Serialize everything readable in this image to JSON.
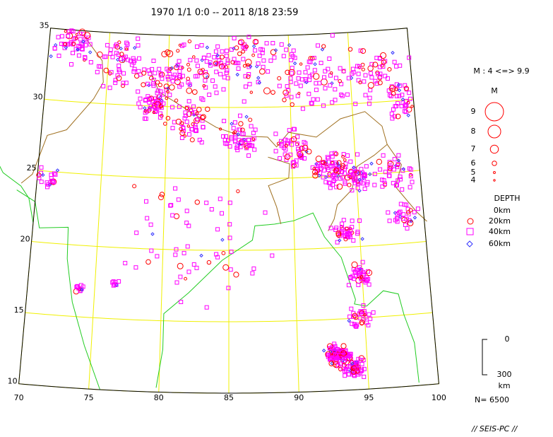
{
  "header": {
    "title": "1970 1/1 0:0 -- 2011 8/18 23:59"
  },
  "map": {
    "lat_labels": [
      35,
      30,
      25,
      20,
      15,
      10
    ],
    "lon_labels": [
      70,
      75,
      80,
      85,
      90,
      95,
      100
    ]
  },
  "legend": {
    "magnitude_range": "M : 4 <=> 9.9",
    "magnitude_title": "M",
    "magnitudes": [
      9,
      8,
      7,
      6,
      5,
      4
    ],
    "depth_title": "DEPTH",
    "depths": [
      "0km",
      "20km",
      "40km",
      "60km"
    ]
  },
  "scale": {
    "top": "0",
    "bottom": "300",
    "unit": "km"
  },
  "footer": {
    "count": "N= 6500",
    "brand": "// SEIS-PC //"
  }
}
